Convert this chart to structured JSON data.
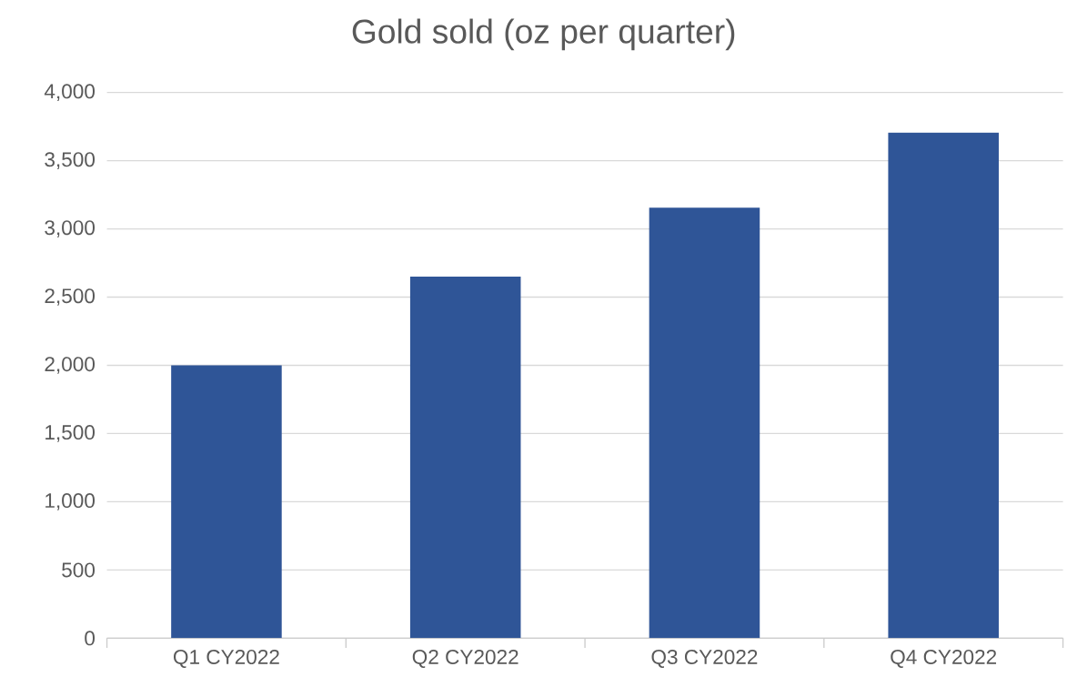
{
  "chart_data": {
    "type": "bar",
    "title": "Gold sold (oz per quarter)",
    "categories": [
      "Q1 CY2022",
      "Q2 CY2022",
      "Q3 CY2022",
      "Q4 CY2022"
    ],
    "values": [
      2000,
      2650,
      3155,
      3705
    ],
    "color": "#2f5597",
    "ylim": [
      0,
      4000
    ],
    "yticks": [
      0,
      500,
      {
        "value": 1000,
        "label": "1,000"
      },
      {
        "value": 1500,
        "label": "1,500"
      },
      {
        "value": 2000,
        "label": "2,000"
      },
      {
        "value": 2500,
        "label": "2,500"
      },
      {
        "value": 3000,
        "label": "3,000"
      },
      {
        "value": 3500,
        "label": "3,500"
      },
      {
        "value": 4000,
        "label": "4,000"
      }
    ],
    "grid": "y"
  }
}
